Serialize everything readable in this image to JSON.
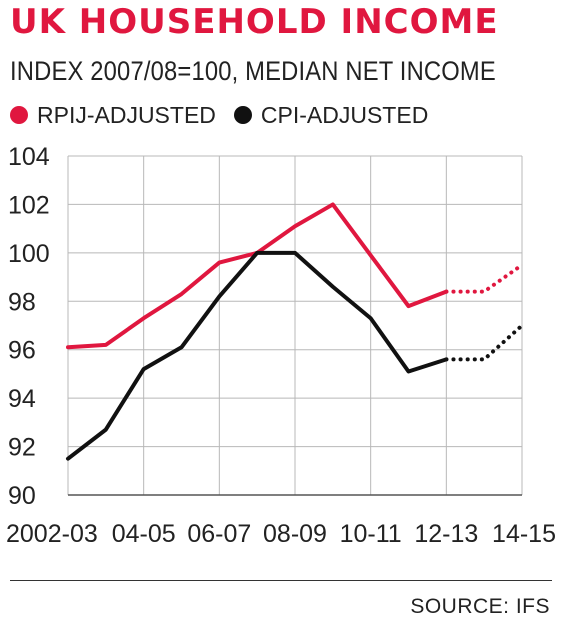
{
  "chart_data": {
    "type": "line",
    "title": "UK HOUSEHOLD INCOME",
    "subtitle": "INDEX 2007/08=100, MEDIAN NET INCOME",
    "source": "SOURCE: IFS",
    "x_tick_labels": [
      "2002-03",
      "04-05",
      "06-07",
      "08-09",
      "10-11",
      "12-13",
      "14-15"
    ],
    "categories": [
      "2002-03",
      "2003-04",
      "2004-05",
      "2005-06",
      "2006-07",
      "2007-08",
      "2008-09",
      "2009-10",
      "2010-11",
      "2011-12",
      "2012-13",
      "2013-14",
      "2014-15"
    ],
    "ylim": [
      90,
      104
    ],
    "yticks": [
      90,
      92,
      94,
      96,
      98,
      100,
      102,
      104
    ],
    "grid": true,
    "legend_position": "top-left",
    "projection_start_index": 10,
    "series": [
      {
        "name": "RPIJ-ADJUSTED",
        "color": "#e0173f",
        "values": [
          96.1,
          96.2,
          97.3,
          98.3,
          99.6,
          100.0,
          101.1,
          102.0,
          99.9,
          97.8,
          98.4,
          98.4,
          99.5
        ]
      },
      {
        "name": "CPI-ADJUSTED",
        "color": "#111111",
        "values": [
          91.5,
          92.7,
          95.2,
          96.1,
          98.2,
          100.0,
          100.0,
          98.6,
          97.3,
          95.1,
          95.6,
          95.6,
          97.0
        ]
      }
    ]
  }
}
